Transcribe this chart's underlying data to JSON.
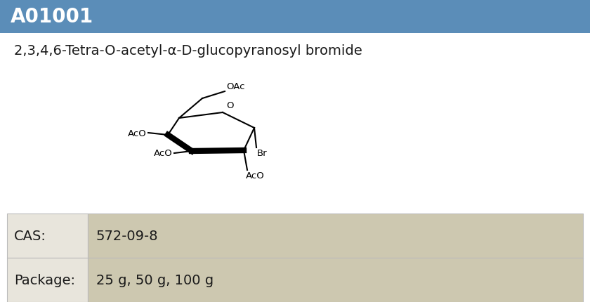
{
  "catalog_id": "A01001",
  "compound_name": "2,3,4,6-Tetra-O-acetyl-α-D-glucopyranosyl bromide",
  "cas_label": "CAS:",
  "cas_value": "572-09-8",
  "package_label": "Package:",
  "package_value": "25 g, 50 g, 100 g",
  "header_bg_color": "#5b8db8",
  "header_text_color": "#ffffff",
  "body_bg_color": "#ffffff",
  "table_row1_bg": "#cdc8b0",
  "table_row2_bg": "#cdc8b0",
  "table_left_bg": "#e8e5dc",
  "table_text_color": "#1a1a1a",
  "border_color": "#bbbbbb",
  "fig_bg_color": "#ffffff"
}
